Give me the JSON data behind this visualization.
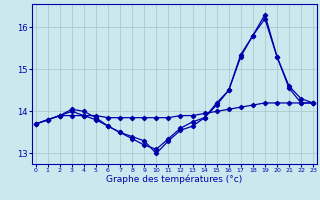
{
  "xlabel": "Graphe des températures (°c)",
  "background_color": "#cce8ee",
  "grid_color": "#aacccc",
  "line_color": "#0000aa",
  "xlim": [
    -0.3,
    23.3
  ],
  "ylim": [
    12.75,
    16.55
  ],
  "xticks": [
    0,
    1,
    2,
    3,
    4,
    5,
    6,
    7,
    8,
    9,
    10,
    11,
    12,
    13,
    14,
    15,
    16,
    17,
    18,
    19,
    20,
    21,
    22,
    23
  ],
  "yticks": [
    13,
    14,
    15,
    16
  ],
  "series1_x": [
    0,
    1,
    2,
    3,
    4,
    5,
    6,
    7,
    8,
    9,
    10,
    11,
    12,
    13,
    14,
    15,
    16,
    17,
    18,
    19,
    20,
    21,
    22,
    23
  ],
  "series1_y": [
    13.7,
    13.8,
    13.9,
    13.9,
    13.9,
    13.9,
    13.85,
    13.85,
    13.85,
    13.85,
    13.85,
    13.85,
    13.9,
    13.9,
    13.95,
    14.0,
    14.05,
    14.1,
    14.15,
    14.2,
    14.2,
    14.2,
    14.2,
    14.2
  ],
  "series2_x": [
    0,
    1,
    2,
    3,
    4,
    5,
    6,
    7,
    8,
    9,
    10,
    11,
    12,
    13,
    14,
    15,
    16,
    17,
    18,
    19,
    20,
    21,
    22,
    23
  ],
  "series2_y": [
    13.7,
    13.8,
    13.9,
    14.0,
    13.9,
    13.8,
    13.65,
    13.5,
    13.35,
    13.2,
    13.1,
    13.35,
    13.6,
    13.75,
    13.85,
    14.15,
    14.5,
    15.3,
    15.8,
    16.2,
    15.3,
    14.6,
    14.3,
    14.2
  ],
  "series3_x": [
    0,
    1,
    2,
    3,
    4,
    5,
    6,
    7,
    8,
    9,
    10,
    11,
    12,
    13,
    14,
    15,
    16,
    17,
    18,
    19,
    20,
    21,
    22,
    23
  ],
  "series3_y": [
    13.7,
    13.8,
    13.9,
    14.05,
    14.0,
    13.85,
    13.65,
    13.5,
    13.4,
    13.3,
    13.0,
    13.3,
    13.55,
    13.65,
    13.85,
    14.2,
    14.5,
    15.35,
    15.8,
    16.3,
    15.3,
    14.55,
    14.2,
    14.2
  ]
}
